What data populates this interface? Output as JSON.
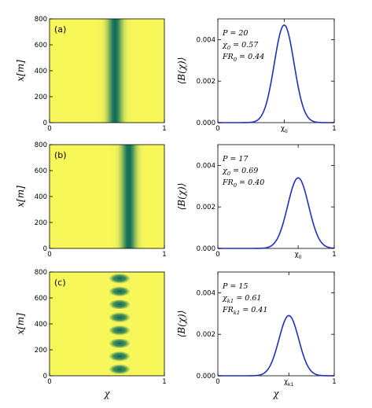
{
  "colors": {
    "heatmap_background": "#f7f75a",
    "heatmap_band": "#0a6b5a",
    "curve": "#1f2fc0"
  },
  "chart_data": [
    {
      "type": "heatmap",
      "panel": "(a)",
      "ylabel": "x[m]",
      "xlabel": "",
      "xlim": [
        0,
        1
      ],
      "ylim": [
        0,
        800
      ],
      "xticks": [
        "0",
        "1"
      ],
      "yticks": [
        "0",
        "200",
        "400",
        "600",
        "800"
      ],
      "band_center": 0.57,
      "band_width": 0.06,
      "pattern": "continuous"
    },
    {
      "type": "line",
      "panel": "(a)",
      "ylabel": "⟨B(χ)⟩",
      "xlabel": "",
      "xlim": [
        0,
        1
      ],
      "ylim": [
        0,
        0.005
      ],
      "xticks": [
        "0",
        "χ0",
        "1"
      ],
      "xtick_values": [
        0,
        0.57,
        1
      ],
      "yticks": [
        "0.000",
        "0.002",
        "0.004"
      ],
      "peak_x": 0.57,
      "peak_y": 0.0047,
      "sigma": 0.085,
      "annotations": [
        "P = 20",
        "χ0 = 0.57",
        "FR0 = 0.44"
      ]
    },
    {
      "type": "heatmap",
      "panel": "(b)",
      "ylabel": "x[m]",
      "xlabel": "",
      "xlim": [
        0,
        1
      ],
      "ylim": [
        0,
        800
      ],
      "xticks": [
        "0",
        "1"
      ],
      "yticks": [
        "0",
        "200",
        "400",
        "600",
        "800"
      ],
      "band_center": 0.69,
      "band_width": 0.06,
      "pattern": "continuous"
    },
    {
      "type": "line",
      "panel": "(b)",
      "ylabel": "⟨B(χ)⟩",
      "xlabel": "",
      "xlim": [
        0,
        1
      ],
      "ylim": [
        0,
        0.005
      ],
      "xticks": [
        "0",
        "χ0",
        "1"
      ],
      "xtick_values": [
        0,
        0.69,
        1
      ],
      "yticks": [
        "0.000",
        "0.002",
        "0.004"
      ],
      "peak_x": 0.69,
      "peak_y": 0.0034,
      "sigma": 0.09,
      "annotations": [
        "P = 17",
        "χ0 = 0.69",
        "FR0 = 0.40"
      ]
    },
    {
      "type": "heatmap",
      "panel": "(c)",
      "ylabel": "x[m]",
      "xlabel": "χ",
      "xlim": [
        0,
        1
      ],
      "ylim": [
        0,
        800
      ],
      "xticks": [
        "0",
        "1"
      ],
      "yticks": [
        "0",
        "200",
        "400",
        "600",
        "800"
      ],
      "band_center": 0.61,
      "band_width": 0.07,
      "pattern": "striped",
      "stripe_centers": [
        50,
        150,
        250,
        350,
        450,
        550,
        650,
        750
      ]
    },
    {
      "type": "line",
      "panel": "(c)",
      "ylabel": "⟨B(χ)⟩",
      "xlabel": "χ",
      "xlim": [
        0,
        1
      ],
      "ylim": [
        0,
        0.005
      ],
      "xticks": [
        "0",
        "χk1",
        "1"
      ],
      "xtick_values": [
        0,
        0.61,
        1
      ],
      "yticks": [
        "0.000",
        "0.002",
        "0.004"
      ],
      "peak_x": 0.61,
      "peak_y": 0.0029,
      "sigma": 0.085,
      "annotations": [
        "P = 15",
        "χk1 = 0.61",
        "FRk1 = 0.41"
      ]
    }
  ]
}
